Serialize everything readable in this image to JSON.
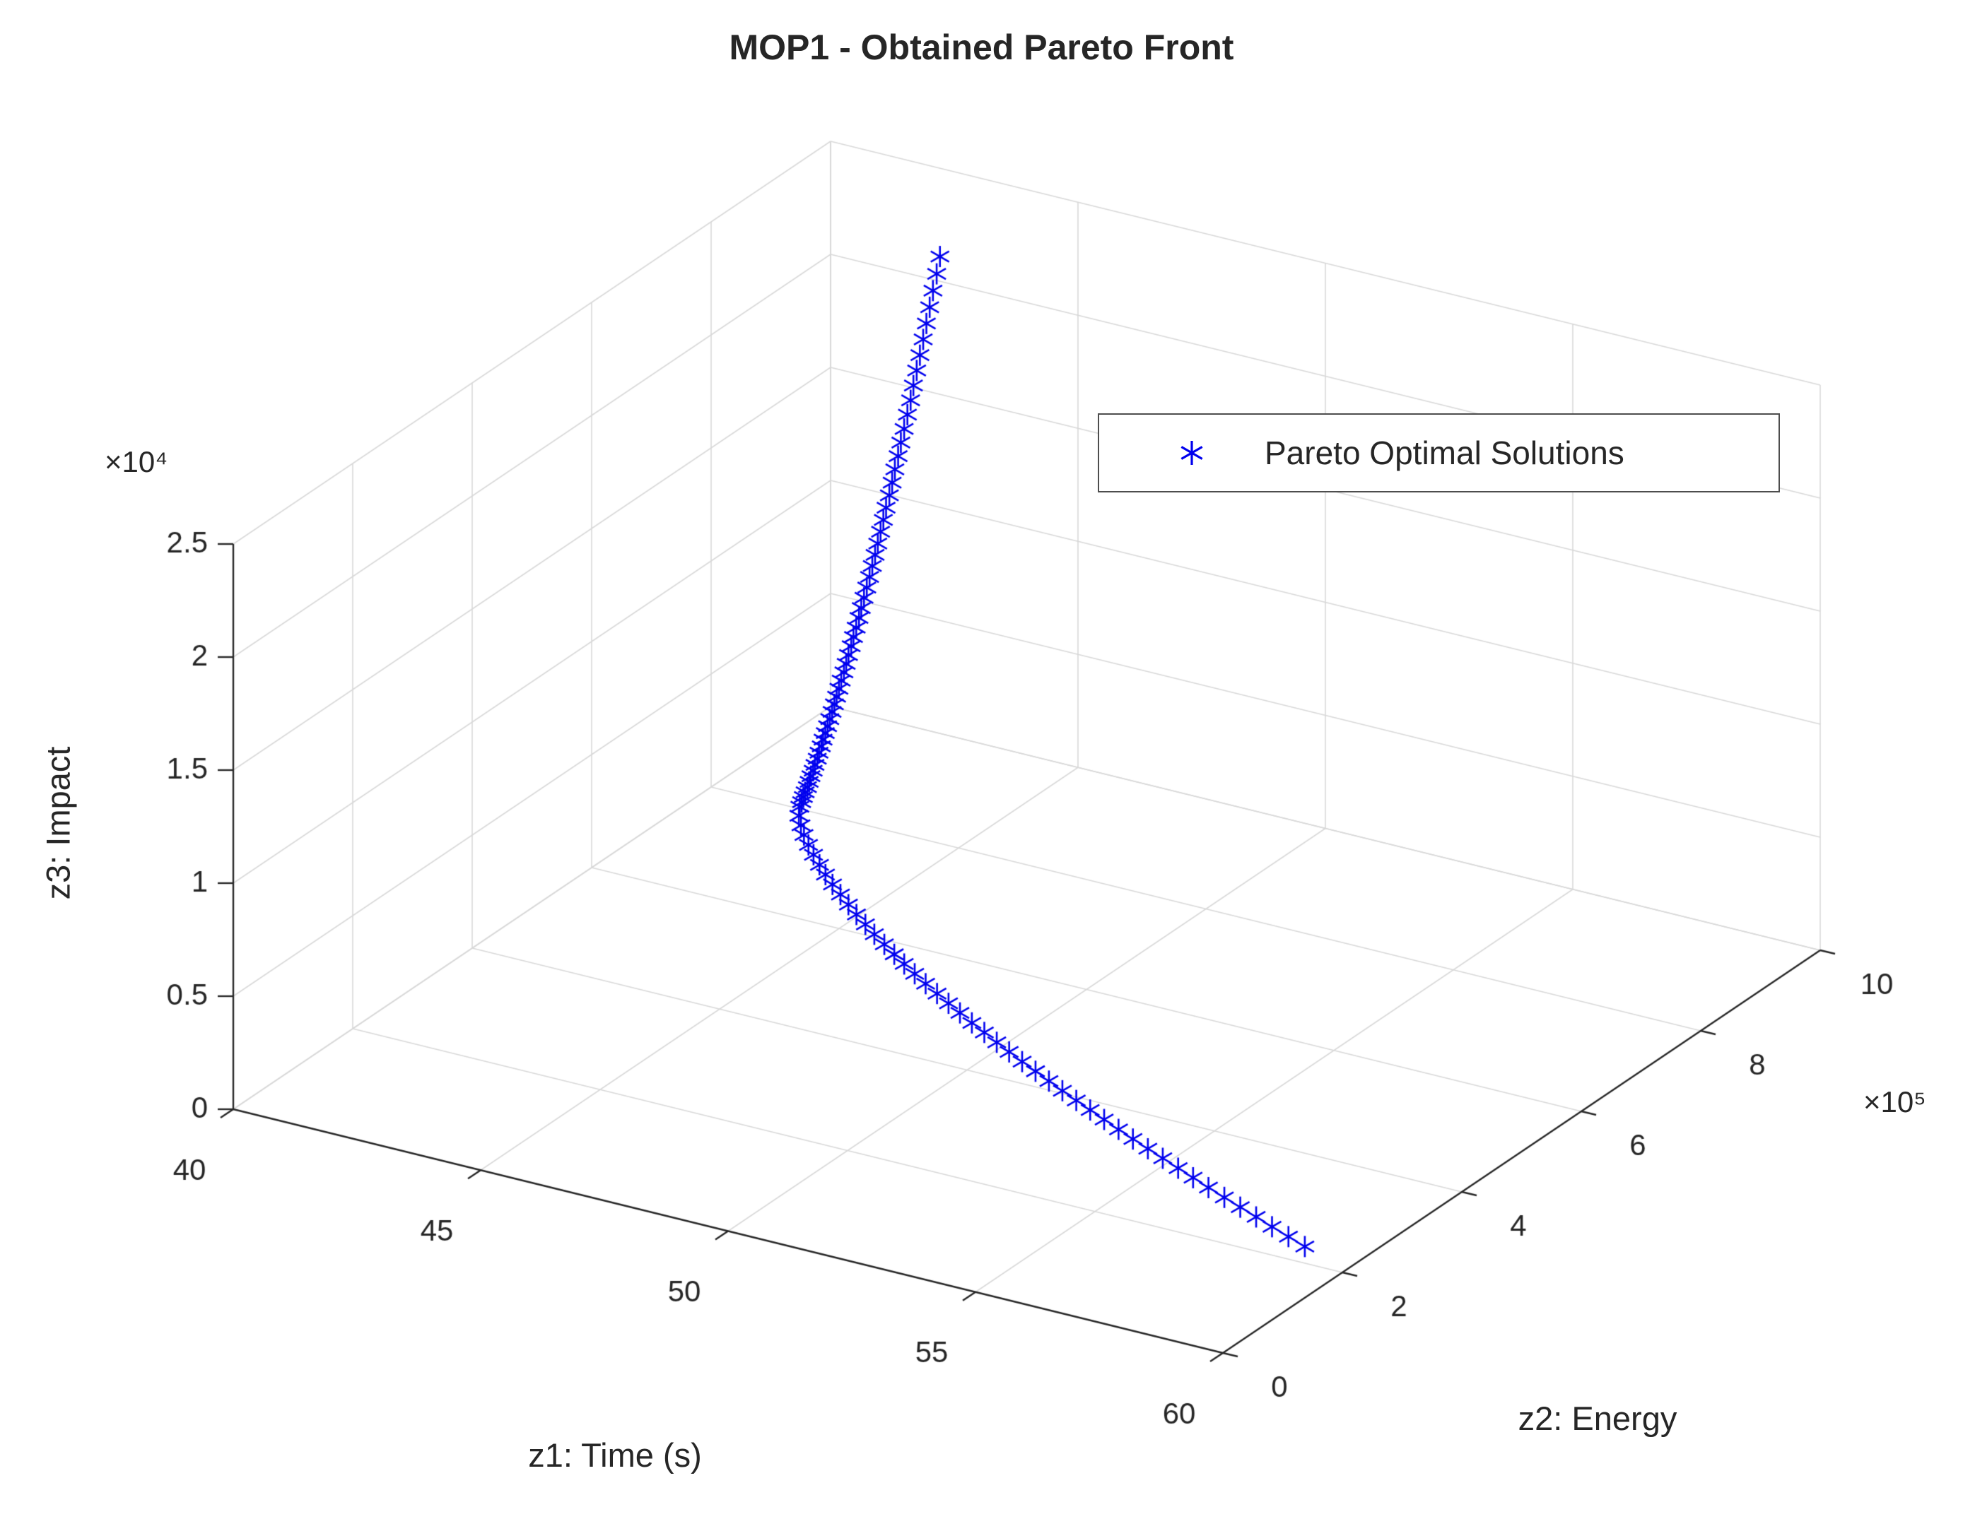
{
  "title": "MOP1 - Obtained Pareto Front",
  "legend": {
    "items": [
      {
        "label": "Pareto Optimal Solutions",
        "marker": "asterisk",
        "color": "#0000EE"
      }
    ]
  },
  "axes": {
    "x": {
      "label": "z1: Time (s)",
      "ticks": [
        "40",
        "45",
        "50",
        "55",
        "60"
      ]
    },
    "y": {
      "label": "z2: Energy",
      "ticks": [
        "0",
        "2",
        "4",
        "6",
        "8",
        "10"
      ],
      "exponent": "×10⁵"
    },
    "z": {
      "label": "z3: Impact",
      "ticks": [
        "0",
        "0.5",
        "1",
        "1.5",
        "2",
        "2.5"
      ],
      "exponent": "×10⁴"
    }
  },
  "colors": {
    "marker": "#0000EE",
    "grid": "#d8d8d8",
    "axis": "#262626",
    "text": "#262626",
    "background": "#ffffff"
  },
  "chart_data": {
    "type": "scatter",
    "projection": "3d",
    "title": "MOP1 - Obtained Pareto Front",
    "xlabel": "z1: Time (s)",
    "ylabel": "z2: Energy",
    "zlabel": "z3: Impact",
    "xlim": [
      40,
      60
    ],
    "ylim": [
      0,
      1000000
    ],
    "zlim": [
      0,
      25000
    ],
    "xticks": [
      40,
      45,
      50,
      55,
      60
    ],
    "yticks": [
      0,
      200000,
      400000,
      600000,
      800000,
      1000000
    ],
    "zticks": [
      0,
      5000,
      10000,
      15000,
      20000,
      25000
    ],
    "grid": true,
    "view": {
      "azimuth": -37.5,
      "elevation": 30
    },
    "legend_position": "upper-right-inside",
    "series": [
      {
        "name": "Pareto Optimal Solutions",
        "marker": "*",
        "color": "#0000EE",
        "z1": [
          43.9,
          43.87,
          43.83,
          43.8,
          43.77,
          43.74,
          43.71,
          43.68,
          43.65,
          43.63,
          43.6,
          43.57,
          43.54,
          43.52,
          43.49,
          43.47,
          43.45,
          43.42,
          43.4,
          43.38,
          43.36,
          43.34,
          43.32,
          43.3,
          43.28,
          43.26,
          43.24,
          43.23,
          43.21,
          43.19,
          43.18,
          43.16,
          43.15,
          43.14,
          43.12,
          43.11,
          43.1,
          43.09,
          43.08,
          43.07,
          43.06,
          43.05,
          43.04,
          43.04,
          43.03,
          43.03,
          43.02,
          43.02,
          43.01,
          43.01,
          43.01,
          43.0,
          43.0,
          43.0,
          43.0,
          43.11,
          43.28,
          43.47,
          43.69,
          43.92,
          44.17,
          44.42,
          44.69,
          44.98,
          45.27,
          45.56,
          45.87,
          46.18,
          46.51,
          46.84,
          47.17,
          47.51,
          47.86,
          48.22,
          48.58,
          48.94,
          49.31,
          49.69,
          50.07,
          50.45,
          50.84,
          51.24,
          51.64,
          52.04,
          52.45,
          52.86,
          53.27,
          53.69,
          54.11,
          54.54,
          54.97,
          55.41,
          55.84,
          56.28,
          56.73,
          57.18,
          57.63,
          58.08,
          58.54,
          59.0
        ],
        "z2": [
          860000,
          857000,
          854100,
          851100,
          848100,
          845200,
          842200,
          839300,
          836300,
          833300,
          830400,
          827400,
          824400,
          821500,
          818500,
          815600,
          812600,
          809600,
          806700,
          803700,
          800700,
          797800,
          794800,
          791900,
          788900,
          785900,
          783000,
          780000,
          777000,
          774100,
          771100,
          768200,
          765200,
          762200,
          759300,
          756300,
          753300,
          750400,
          747400,
          744400,
          741500,
          738500,
          735600,
          732600,
          729600,
          726700,
          723700,
          720700,
          717800,
          714800,
          711900,
          708900,
          705900,
          703000,
          700000,
          689300,
          678700,
          668000,
          657300,
          646700,
          636000,
          625300,
          614700,
          604000,
          593300,
          582700,
          572000,
          561300,
          550700,
          540000,
          529300,
          518700,
          508000,
          497300,
          486700,
          476000,
          465300,
          454700,
          444000,
          433300,
          422700,
          412000,
          401300,
          390700,
          380000,
          369300,
          358700,
          348000,
          337300,
          326700,
          316000,
          305300,
          294700,
          284000,
          273300,
          262700,
          252000,
          241300,
          230700,
          220000
        ],
        "z3": [
          24500,
          23770,
          23060,
          22360,
          21680,
          21010,
          20350,
          19710,
          19080,
          18470,
          17870,
          17280,
          16710,
          16150,
          15600,
          15060,
          14540,
          14030,
          13530,
          13050,
          12570,
          12110,
          11660,
          11220,
          10790,
          10380,
          9970,
          9580,
          9190,
          8820,
          8460,
          8110,
          7770,
          7440,
          7110,
          6800,
          6500,
          6210,
          5920,
          5650,
          5380,
          5130,
          4880,
          4640,
          4410,
          4190,
          3970,
          3760,
          3570,
          3370,
          3190,
          3010,
          2850,
          2680,
          2530,
          2380,
          2240,
          2100,
          1970,
          1850,
          1730,
          1620,
          1520,
          1420,
          1320,
          1230,
          1150,
          1070,
          990,
          920,
          860,
          800,
          740,
          690,
          640,
          600,
          550,
          520,
          480,
          450,
          420,
          400,
          370,
          350,
          330,
          320,
          310,
          290,
          280,
          270,
          270,
          260,
          260,
          250,
          250,
          250,
          250,
          250,
          250,
          250
        ]
      }
    ]
  }
}
